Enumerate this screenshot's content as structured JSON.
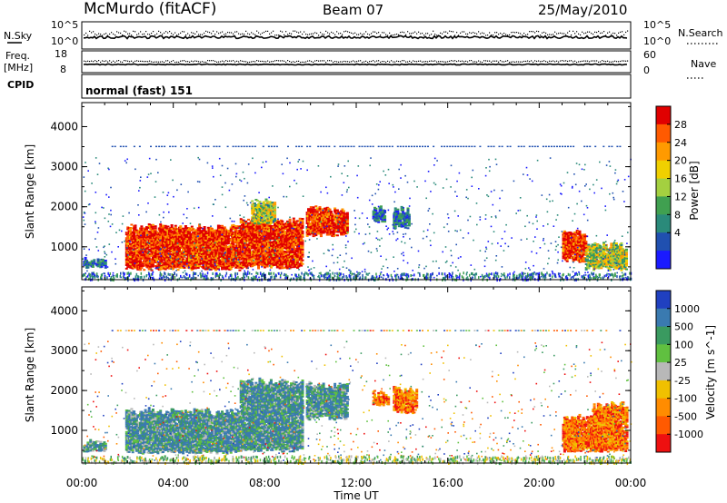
{
  "header": {
    "station": "McMurdo (fitACF)",
    "beam": "Beam 07",
    "date": "25/May/2010"
  },
  "aux_panel": {
    "left_label_top": "N.Sky",
    "left_label_freq": "Freq.",
    "left_label_freq_unit": "[MHz]",
    "left_label_cpid": "CPID",
    "right_label_top": "N.Search",
    "right_label_nave": "Nave",
    "nsky_ticks": [
      "10^5",
      "10^0"
    ],
    "nsearch_ticks": [
      "10^5",
      "10^0"
    ],
    "freq_ticks": [
      "18",
      "8"
    ],
    "nave_ticks": [
      "60",
      "0"
    ],
    "cpid_text": "normal (fast) 151"
  },
  "chart_data": [
    {
      "type": "heatmap",
      "name": "Power panel",
      "ylabel": "Slant Range [km]",
      "ylim": [
        180,
        4600
      ],
      "yticks": [
        "1000",
        "2000",
        "3000",
        "4000"
      ],
      "xlim_hours": [
        0,
        24
      ],
      "colorbar": {
        "label": "Power [dB]",
        "levels": [
          "28",
          "24",
          "20",
          "16",
          "12",
          "8",
          "4"
        ],
        "colors": [
          "#e00000",
          "#ff5a00",
          "#ff9a00",
          "#f0d000",
          "#a4d040",
          "#40a050",
          "#2a8a7a",
          "#2050b0",
          "#1a1aff"
        ]
      },
      "echo_regions": [
        {
          "t0": 0.05,
          "t1": 1.0,
          "r0": 500,
          "r1": 650,
          "level": "low"
        },
        {
          "t0": 1.9,
          "t1": 6.9,
          "r0": 450,
          "r1": 1450,
          "level": "high"
        },
        {
          "t0": 6.9,
          "t1": 9.6,
          "r0": 500,
          "r1": 1600,
          "level": "high"
        },
        {
          "t0": 7.4,
          "t1": 8.4,
          "r0": 1600,
          "r1": 2100,
          "level": "mid"
        },
        {
          "t0": 9.8,
          "t1": 11.6,
          "r0": 1300,
          "r1": 1900,
          "level": "high"
        },
        {
          "t0": 12.7,
          "t1": 13.2,
          "r0": 1650,
          "r1": 1900,
          "level": "low"
        },
        {
          "t0": 13.6,
          "t1": 14.3,
          "r0": 1500,
          "r1": 1900,
          "level": "low"
        },
        {
          "t0": 21.0,
          "t1": 22.0,
          "r0": 650,
          "r1": 1350,
          "level": "high"
        },
        {
          "t0": 22.0,
          "t1": 23.8,
          "r0": 450,
          "r1": 1000,
          "level": "mid"
        }
      ]
    },
    {
      "type": "heatmap",
      "name": "Velocity panel",
      "ylabel": "Slant Range [km]",
      "ylim": [
        180,
        4600
      ],
      "yticks": [
        "1000",
        "2000",
        "3000",
        "4000"
      ],
      "xlim_hours": [
        0,
        24
      ],
      "colorbar": {
        "label": "Velocity [m s^-1]",
        "levels": [
          "1000",
          "500",
          "100",
          "25",
          "-25",
          "-100",
          "-500",
          "-1000"
        ],
        "colors": [
          "#2040c0",
          "#3a7ab0",
          "#3a9a60",
          "#60c040",
          "#b8b8b8",
          "#f0c000",
          "#ff8c00",
          "#ff5a00",
          "#ee1010"
        ]
      },
      "echo_regions": [
        {
          "t0": 0.05,
          "t1": 1.0,
          "r0": 500,
          "r1": 650,
          "level": "pos"
        },
        {
          "t0": 1.9,
          "t1": 6.9,
          "r0": 450,
          "r1": 1450,
          "level": "pos"
        },
        {
          "t0": 6.9,
          "t1": 9.6,
          "r0": 500,
          "r1": 2200,
          "level": "pos"
        },
        {
          "t0": 9.8,
          "t1": 11.6,
          "r0": 1300,
          "r1": 2100,
          "level": "pos"
        },
        {
          "t0": 12.7,
          "t1": 13.4,
          "r0": 1650,
          "r1": 1900,
          "level": "neg"
        },
        {
          "t0": 13.6,
          "t1": 14.6,
          "r0": 1450,
          "r1": 2000,
          "level": "neg"
        },
        {
          "t0": 21.0,
          "t1": 22.3,
          "r0": 500,
          "r1": 1300,
          "level": "neg"
        },
        {
          "t0": 22.3,
          "t1": 23.8,
          "r0": 500,
          "r1": 1600,
          "level": "neg"
        }
      ]
    }
  ],
  "xaxis": {
    "label": "Time UT",
    "ticks": [
      "00:00",
      "04:00",
      "08:00",
      "12:00",
      "16:00",
      "20:00",
      "00:00"
    ]
  }
}
